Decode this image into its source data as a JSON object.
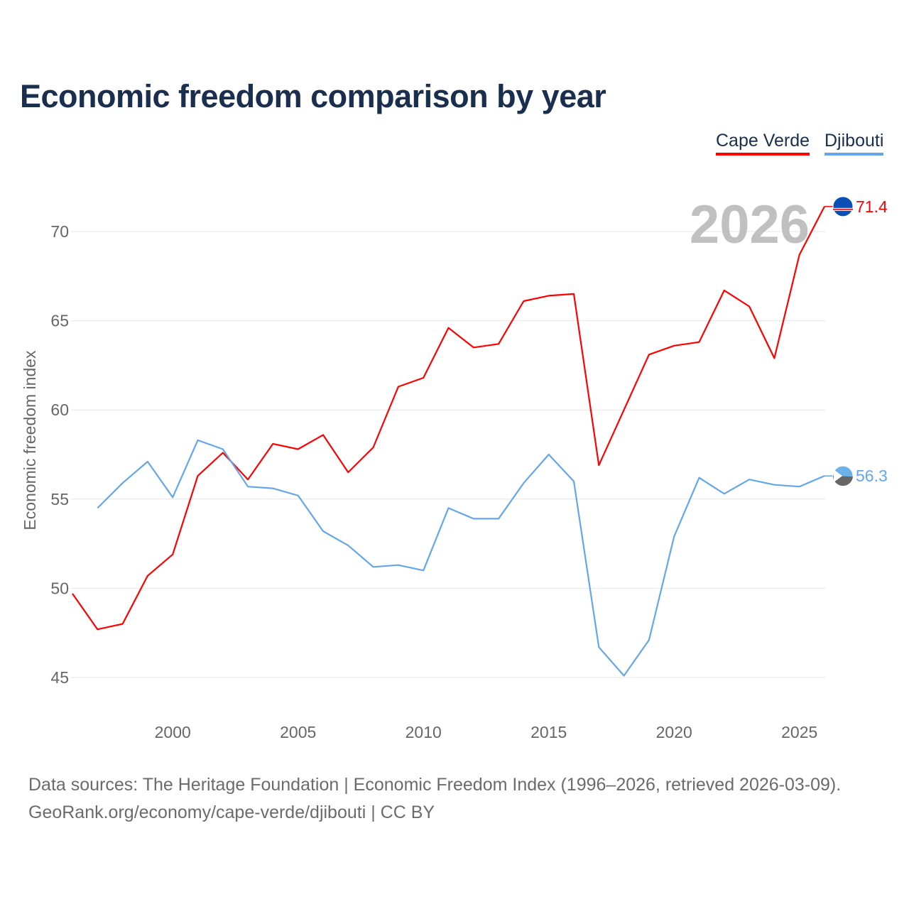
{
  "title": "Economic freedom comparison by year",
  "footer": {
    "line1": "Data sources: The Heritage Foundation | Economic Freedom Index (1996–2026, retrieved 2026-03-09).",
    "line2": "GeoRank.org/economy/cape-verde/djibouti | CC BY"
  },
  "chart_data": {
    "type": "line",
    "title": "Economic freedom comparison by year",
    "xlabel": "",
    "ylabel": "Economic freedom index",
    "year_label": "2026",
    "xlim": [
      1996,
      2026
    ],
    "ylim": [
      43,
      73
    ],
    "x_ticks": [
      2000,
      2005,
      2010,
      2015,
      2020,
      2025
    ],
    "y_ticks": [
      45,
      50,
      55,
      60,
      65,
      70
    ],
    "grid": true,
    "legend_position": "top-right",
    "series": [
      {
        "name": "Cape Verde",
        "color": "#ff0000",
        "end_label": "71.4",
        "x": [
          1996,
          1997,
          1998,
          1999,
          2000,
          2001,
          2002,
          2003,
          2004,
          2005,
          2006,
          2007,
          2008,
          2009,
          2010,
          2011,
          2012,
          2013,
          2014,
          2015,
          2016,
          2017,
          2018,
          2019,
          2020,
          2021,
          2022,
          2023,
          2024,
          2025,
          2026
        ],
        "values": [
          49.7,
          47.7,
          48.0,
          50.7,
          51.9,
          56.3,
          57.6,
          56.1,
          58.1,
          57.8,
          58.6,
          56.5,
          57.9,
          61.3,
          61.8,
          64.6,
          63.5,
          63.7,
          66.1,
          66.4,
          66.5,
          56.9,
          60.0,
          63.1,
          63.6,
          63.8,
          66.7,
          65.8,
          62.9,
          68.7,
          71.4
        ]
      },
      {
        "name": "Djibouti",
        "color": "#63a7ea",
        "end_label": "56.3",
        "x": [
          1997,
          1998,
          1999,
          2000,
          2001,
          2002,
          2003,
          2004,
          2005,
          2006,
          2007,
          2008,
          2009,
          2010,
          2011,
          2012,
          2013,
          2014,
          2015,
          2016,
          2017,
          2018,
          2019,
          2020,
          2021,
          2022,
          2023,
          2024,
          2025,
          2026
        ],
        "values": [
          54.5,
          55.9,
          57.1,
          55.1,
          58.3,
          57.8,
          55.7,
          55.6,
          55.2,
          53.2,
          52.4,
          51.2,
          51.3,
          51.0,
          54.5,
          53.9,
          53.9,
          55.9,
          57.5,
          56.0,
          46.7,
          45.1,
          47.1,
          52.9,
          56.2,
          55.3,
          56.1,
          55.8,
          55.7,
          56.3
        ]
      }
    ]
  }
}
